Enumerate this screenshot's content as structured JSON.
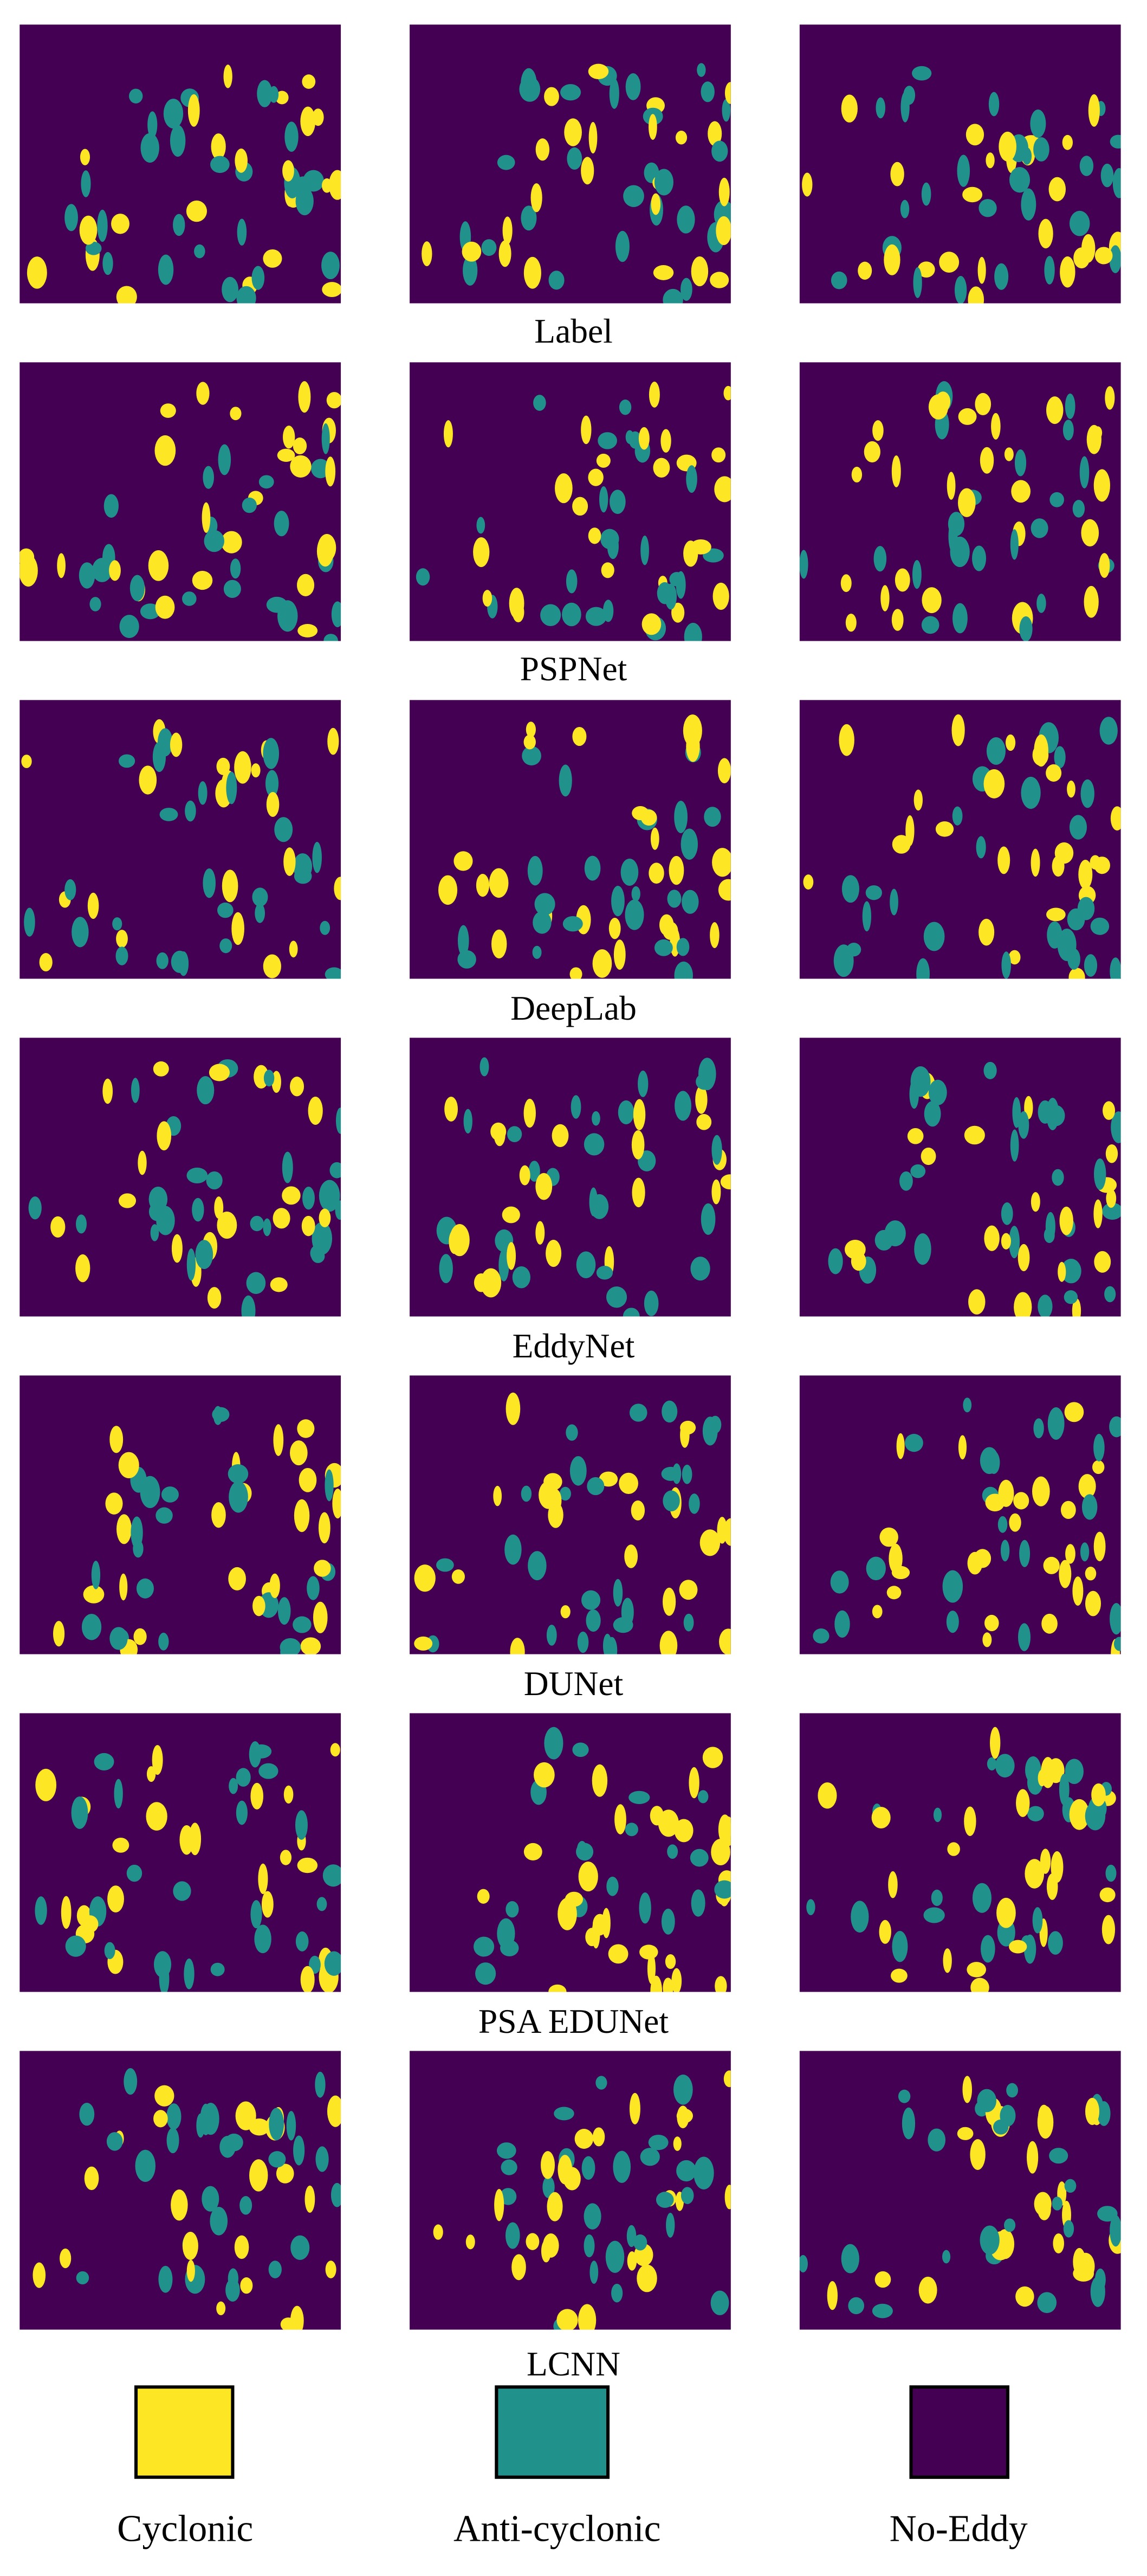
{
  "rows": [
    {
      "label": "Label"
    },
    {
      "label": "PSPNet"
    },
    {
      "label": "DeepLab"
    },
    {
      "label": "EddyNet"
    },
    {
      "label": "DUNet"
    },
    {
      "label": "PSA EDUNet"
    },
    {
      "label": "LCNN"
    }
  ],
  "columns_per_row": 3,
  "legend": [
    {
      "label": "Cyclonic",
      "color": "#fde725"
    },
    {
      "label": "Anti-cyclonic",
      "color": "#21918c"
    },
    {
      "label": "No-Eddy",
      "color": "#440154"
    }
  ]
}
